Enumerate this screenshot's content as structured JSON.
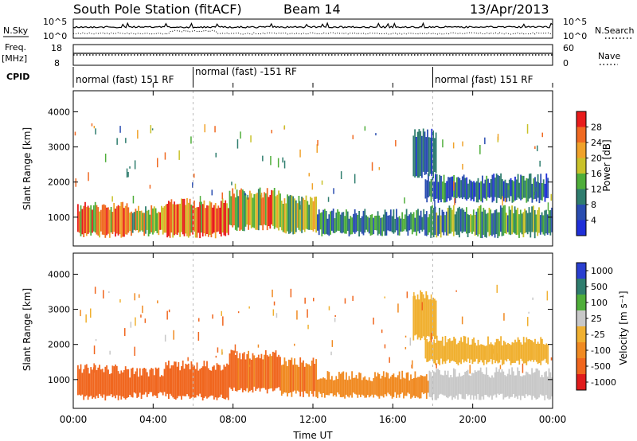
{
  "header": {
    "station": "South Pole Station (fitACF)",
    "beam": "Beam 14",
    "date": "13/Apr/2013"
  },
  "top_panels": {
    "nsky_label": "N.Sky",
    "nsearch_label": "N.Search",
    "freq_label_1": "Freq.",
    "freq_label_2": "[MHz]",
    "nave_label": "Nave",
    "cpid_label": "CPID",
    "noise_ticks_left": [
      "10^5",
      "10^0"
    ],
    "noise_ticks_right": [
      "10^5",
      "10^0"
    ],
    "freq_ticks_left": [
      "18",
      "8"
    ],
    "nave_ticks_right": [
      "60",
      "0"
    ],
    "cpid_segments": [
      {
        "label": "normal (fast) 151 RF",
        "start_hour": 0
      },
      {
        "label": "normal (fast) -151 RF",
        "start_hour": 6
      },
      {
        "label": "normal (fast) 151 RF",
        "start_hour": 18
      }
    ]
  },
  "chart_data": [
    {
      "type": "heatmap",
      "panel": "power",
      "ylabel": "Slant Range [km]",
      "yticks": [
        "1000",
        "2000",
        "3000",
        "4000"
      ],
      "ylim": [
        180,
        4600
      ],
      "colorbar_label": "Power [dB]",
      "colorbar_ticks": [
        "4",
        "8",
        "12",
        "16",
        "20",
        "24",
        "28"
      ],
      "colors": [
        "#1f2fd8",
        "#2a4db0",
        "#2f7d6e",
        "#4fae3a",
        "#c9c22a",
        "#f0a22a",
        "#f06a22",
        "#e81c1c"
      ],
      "vmin": 0,
      "vmax": 32,
      "bands": [
        {
          "t0": 0.2,
          "t1": 2.8,
          "r0": 500,
          "r1": 1300,
          "level": 24
        },
        {
          "t0": 2.8,
          "t1": 4.6,
          "r0": 550,
          "r1": 1200,
          "level": 20
        },
        {
          "t0": 4.6,
          "t1": 7.8,
          "r0": 500,
          "r1": 1400,
          "level": 26
        },
        {
          "t0": 7.8,
          "t1": 10.4,
          "r0": 700,
          "r1": 1700,
          "level": 20
        },
        {
          "t0": 10.4,
          "t1": 12.2,
          "r0": 600,
          "r1": 1500,
          "level": 16
        },
        {
          "t0": 12.2,
          "t1": 17.8,
          "r0": 550,
          "r1": 1100,
          "level": 10
        },
        {
          "t0": 17.8,
          "t1": 24.0,
          "r0": 500,
          "r1": 1200,
          "level": 12
        },
        {
          "t0": 17.6,
          "t1": 23.8,
          "r0": 1500,
          "r1": 2100,
          "level": 8
        },
        {
          "t0": 17.0,
          "t1": 18.2,
          "r0": 2200,
          "r1": 3400,
          "level": 6
        }
      ]
    },
    {
      "type": "heatmap",
      "panel": "velocity",
      "ylabel": "Slant Range [km]",
      "yticks": [
        "1000",
        "2000",
        "3000",
        "4000"
      ],
      "ylim": [
        180,
        4600
      ],
      "colorbar_label": "Velocity [m s⁻¹]",
      "colorbar_ticks": [
        "1000",
        "500",
        "100",
        "25",
        "-25",
        "-100",
        "-500",
        "-1000"
      ],
      "colors": [
        "#2a3fd0",
        "#2f7d6e",
        "#4fae3a",
        "#c8c8c8",
        "#f0b030",
        "#f08a22",
        "#f0661e",
        "#e01c1c"
      ],
      "bands": [
        {
          "t0": 0.2,
          "t1": 2.8,
          "r0": 500,
          "r1": 1300,
          "level": -150
        },
        {
          "t0": 2.8,
          "t1": 4.6,
          "r0": 550,
          "r1": 1200,
          "level": -300
        },
        {
          "t0": 4.6,
          "t1": 7.8,
          "r0": 500,
          "r1": 1400,
          "level": -200
        },
        {
          "t0": 7.8,
          "t1": 10.4,
          "r0": 700,
          "r1": 1700,
          "level": -120
        },
        {
          "t0": 10.4,
          "t1": 12.2,
          "r0": 600,
          "r1": 1500,
          "level": -80
        },
        {
          "t0": 12.2,
          "t1": 17.8,
          "r0": 550,
          "r1": 1100,
          "level": -60
        },
        {
          "t0": 17.8,
          "t1": 24.0,
          "r0": 500,
          "r1": 1200,
          "level": 60
        },
        {
          "t0": 17.6,
          "t1": 23.8,
          "r0": 1500,
          "r1": 2100,
          "level": 0
        },
        {
          "t0": 17.0,
          "t1": 18.2,
          "r0": 2200,
          "r1": 3400,
          "level": 0
        }
      ]
    }
  ],
  "xaxis": {
    "label": "Time UT",
    "ticks": [
      "00:00",
      "04:00",
      "08:00",
      "12:00",
      "16:00",
      "20:00",
      "00:00"
    ]
  }
}
